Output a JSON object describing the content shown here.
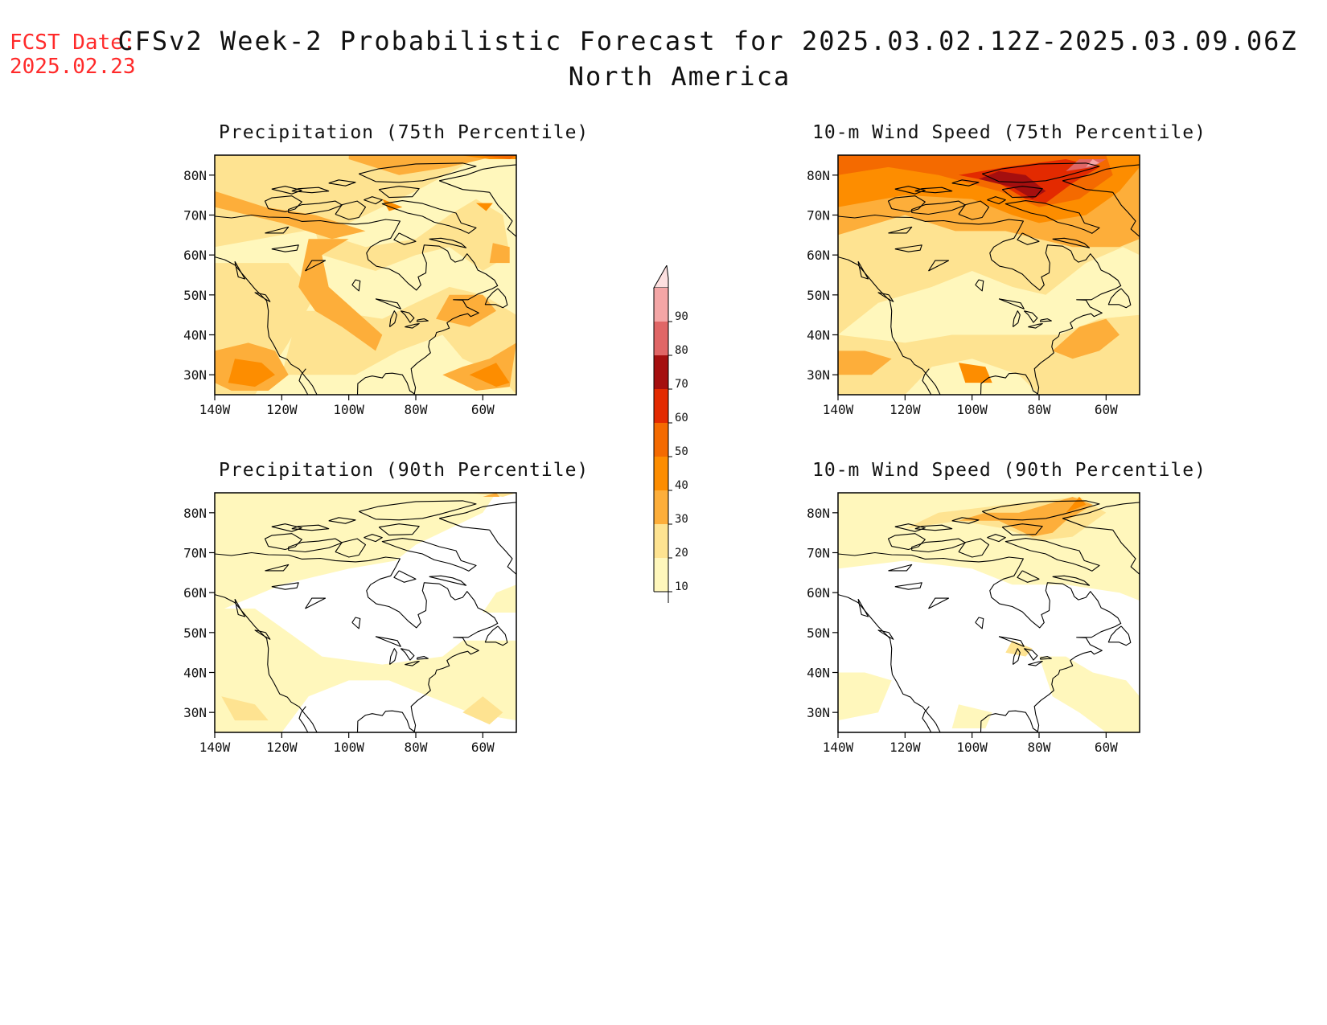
{
  "header": {
    "fcst_label": "FCST Date:",
    "fcst_date": "2025.02.23",
    "title": "CFSv2 Week-2 Probabilistic Forecast for 2025.03.02.12Z-2025.03.09.06Z",
    "subtitle": "North America"
  },
  "colors": {
    "c10": "#fff7bc",
    "c20": "#fee391",
    "c30": "#fdae3a",
    "c40": "#fd8d00",
    "c50": "#f46a00",
    "c60": "#e32a00",
    "c70": "#a50f0f",
    "c80": "#e06666",
    "c90": "#f4a6a6",
    "c100": "#fde0e0",
    "coast": "#000000"
  },
  "legend": {
    "labels": [
      "90",
      "80",
      "70",
      "60",
      "50",
      "40",
      "30",
      "20",
      "10"
    ]
  },
  "axes": {
    "lat_labels": [
      "80N",
      "70N",
      "60N",
      "50N",
      "40N",
      "30N"
    ],
    "lon_labels": [
      "140W",
      "120W",
      "100W",
      "80W",
      "60W"
    ]
  },
  "panels": [
    {
      "title": "Precipitation (75th Percentile)",
      "variable": "precipitation",
      "percentile": 75
    },
    {
      "title": "10-m Wind Speed (75th Percentile)",
      "variable": "wind",
      "percentile": 75
    },
    {
      "title": "Precipitation (90th Percentile)",
      "variable": "precipitation",
      "percentile": 90
    },
    {
      "title": "10-m Wind Speed (90th Percentile)",
      "variable": "wind",
      "percentile": 90
    }
  ]
}
